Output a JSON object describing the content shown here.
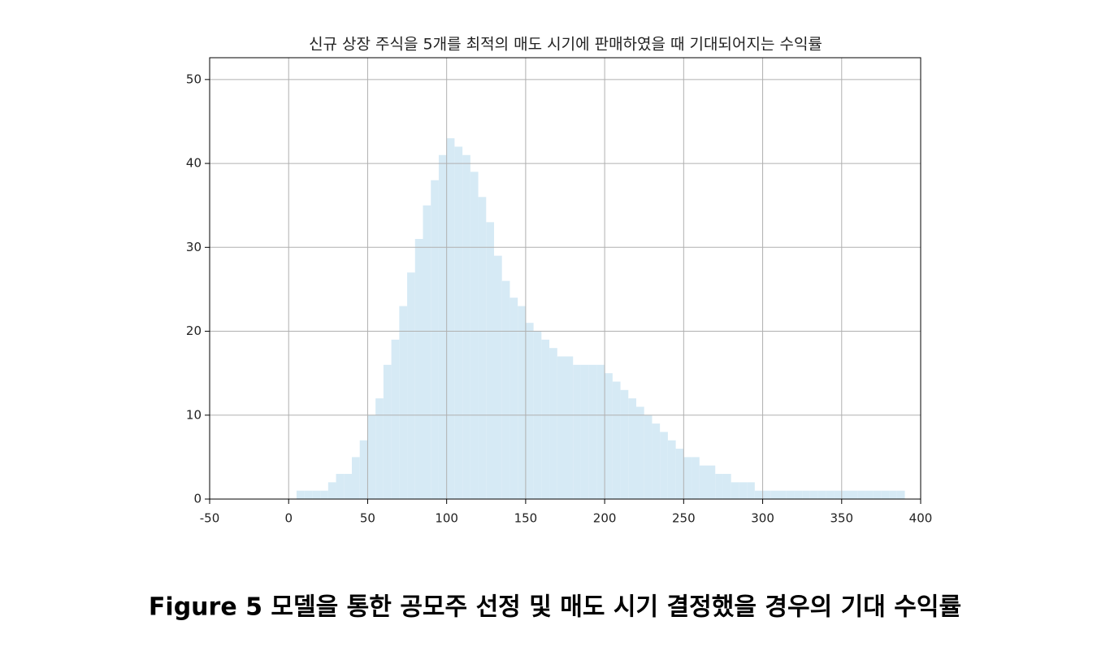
{
  "chart_data": {
    "type": "histogram",
    "title": "신규 상장 주식을 5개를 최적의 매도 시기에 판매하였을 때 기대되어지는 수익률",
    "bins": [
      0,
      5,
      10,
      15,
      20,
      25,
      30,
      35,
      40,
      45,
      50,
      55,
      60,
      65,
      70,
      75,
      80,
      85,
      90,
      95,
      100,
      105,
      110,
      115,
      120,
      125,
      130,
      135,
      140,
      145,
      150,
      155,
      160,
      165,
      170,
      175,
      180,
      185,
      190,
      195,
      200,
      205,
      210,
      215,
      220,
      225,
      230,
      235,
      240,
      245,
      250,
      255,
      260,
      265,
      270,
      275,
      280,
      285,
      290,
      295,
      300,
      305,
      310,
      315,
      320,
      325,
      330,
      335,
      340,
      345,
      350,
      355,
      360,
      365,
      370,
      375,
      380,
      385,
      390
    ],
    "values": [
      0,
      1,
      1,
      1,
      1,
      2,
      3,
      3,
      5,
      7,
      10,
      12,
      16,
      19,
      23,
      27,
      31,
      35,
      38,
      41,
      43,
      42,
      41,
      39,
      36,
      33,
      29,
      26,
      24,
      23,
      21,
      20,
      19,
      18,
      17,
      17,
      16,
      16,
      16,
      16,
      15,
      14,
      13,
      12,
      11,
      10,
      9,
      8,
      7,
      6,
      5,
      5,
      4,
      4,
      3,
      3,
      2,
      2,
      2,
      1,
      1,
      1,
      1,
      1,
      1,
      1,
      1,
      1,
      1,
      1,
      1,
      1,
      1,
      1,
      1,
      1,
      1,
      1
    ],
    "color": "#d6eaf5",
    "xlim": [
      -50,
      400
    ],
    "xticks": [
      -50,
      0,
      50,
      100,
      150,
      200,
      250,
      300,
      350,
      400
    ],
    "ylim": [
      0,
      52.6
    ],
    "yticks": [
      0,
      10,
      20,
      30,
      40,
      50
    ],
    "grid": true
  },
  "caption": "Figure 5 모델을 통한 공모주 선정 및 매도 시기 결정했을 경우의 기대 수익률"
}
